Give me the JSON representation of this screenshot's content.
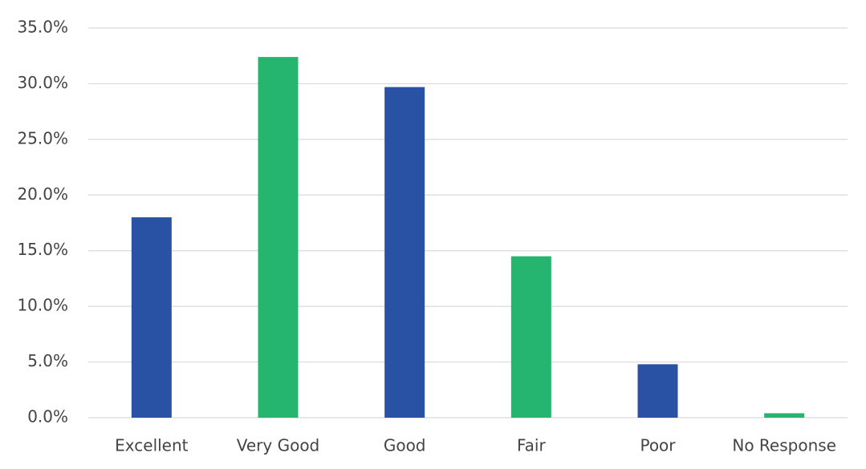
{
  "chart_data": {
    "type": "bar",
    "categories": [
      "Excellent",
      "Very Good",
      "Good",
      "Fair",
      "Poor",
      "No Response"
    ],
    "values": [
      18.0,
      32.4,
      29.7,
      14.5,
      4.8,
      0.4
    ],
    "colors": [
      "#2a52a4",
      "#25b56f",
      "#2a52a4",
      "#25b56f",
      "#2a52a4",
      "#25b56f"
    ],
    "ylim": [
      0,
      35
    ],
    "yticks": [
      {
        "value": 0,
        "label": "0.0%"
      },
      {
        "value": 5,
        "label": "5.0%"
      },
      {
        "value": 10,
        "label": "10.0%"
      },
      {
        "value": 15,
        "label": "15.0%"
      },
      {
        "value": 20,
        "label": "20.0%"
      },
      {
        "value": 25,
        "label": "25.0%"
      },
      {
        "value": 30,
        "label": "30.0%"
      },
      {
        "value": 35,
        "label": "35.0%"
      }
    ],
    "grid": true
  }
}
